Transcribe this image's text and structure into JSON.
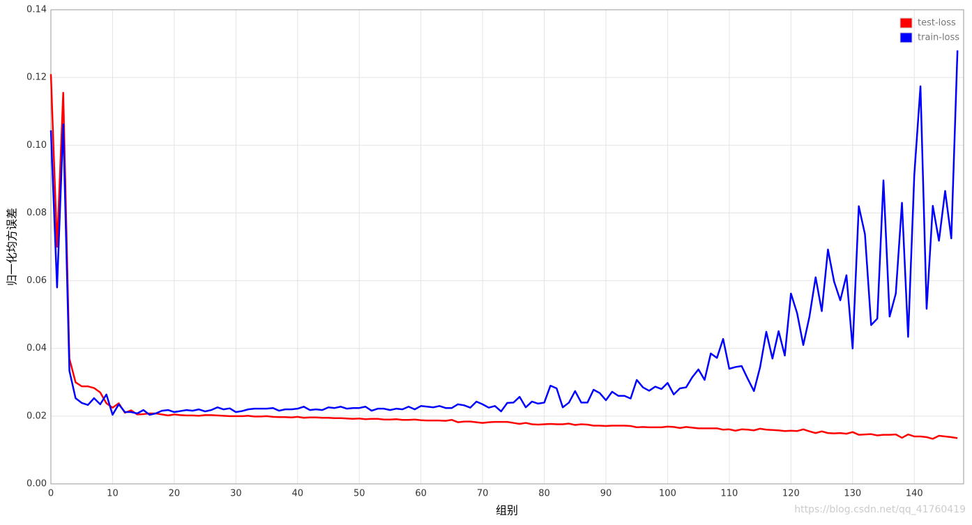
{
  "chart_data": {
    "type": "line",
    "x_label": "组别",
    "y_label": "归一化均方误差",
    "watermark": "https://blog.csdn.net/qq_41760419",
    "x": [
      0,
      1,
      2,
      3,
      4,
      5,
      6,
      7,
      8,
      9,
      10,
      11,
      12,
      13,
      14,
      15,
      16,
      17,
      18,
      19,
      20,
      21,
      22,
      23,
      24,
      25,
      26,
      27,
      28,
      29,
      30,
      31,
      32,
      33,
      34,
      35,
      36,
      37,
      38,
      39,
      40,
      41,
      42,
      43,
      44,
      45,
      46,
      47,
      48,
      49,
      50,
      51,
      52,
      53,
      54,
      55,
      56,
      57,
      58,
      59,
      60,
      61,
      62,
      63,
      64,
      65,
      66,
      67,
      68,
      69,
      70,
      71,
      72,
      73,
      74,
      75,
      76,
      77,
      78,
      79,
      80,
      81,
      82,
      83,
      84,
      85,
      86,
      87,
      88,
      89,
      90,
      91,
      92,
      93,
      94,
      95,
      96,
      97,
      98,
      99,
      100,
      101,
      102,
      103,
      104,
      105,
      106,
      107,
      108,
      109,
      110,
      111,
      112,
      113,
      114,
      115,
      116,
      117,
      118,
      119,
      120,
      121,
      122,
      123,
      124,
      125,
      126,
      127,
      128,
      129,
      130,
      131,
      132,
      133,
      134,
      135,
      136,
      137,
      138,
      139,
      140,
      141,
      142,
      143,
      144,
      145,
      146,
      147
    ],
    "series": [
      {
        "name": "test-loss",
        "color": "#ff0000",
        "values": [
          0.121,
          0.07,
          0.1155,
          0.037,
          0.03,
          0.0288,
          0.0288,
          0.0283,
          0.027,
          0.0238,
          0.0225,
          0.0238,
          0.021,
          0.0217,
          0.0205,
          0.0206,
          0.0208,
          0.0208,
          0.0205,
          0.0202,
          0.0205,
          0.0203,
          0.0202,
          0.0202,
          0.0201,
          0.0203,
          0.0203,
          0.0202,
          0.0201,
          0.02,
          0.02,
          0.02,
          0.0201,
          0.0199,
          0.0199,
          0.02,
          0.0198,
          0.0197,
          0.0197,
          0.0196,
          0.0198,
          0.0195,
          0.0196,
          0.0196,
          0.0195,
          0.0195,
          0.0194,
          0.0194,
          0.0193,
          0.0192,
          0.0193,
          0.0191,
          0.0192,
          0.0192,
          0.019,
          0.019,
          0.0191,
          0.0189,
          0.0189,
          0.019,
          0.0188,
          0.0187,
          0.0187,
          0.0187,
          0.0186,
          0.0189,
          0.0182,
          0.0184,
          0.0184,
          0.0182,
          0.018,
          0.0182,
          0.0183,
          0.0183,
          0.0183,
          0.018,
          0.0177,
          0.018,
          0.0176,
          0.0175,
          0.0176,
          0.0177,
          0.0176,
          0.0176,
          0.0178,
          0.0174,
          0.0176,
          0.0175,
          0.0172,
          0.0172,
          0.0171,
          0.0172,
          0.0172,
          0.0172,
          0.0171,
          0.0167,
          0.0168,
          0.0167,
          0.0167,
          0.0167,
          0.0169,
          0.0168,
          0.0165,
          0.0168,
          0.0166,
          0.0164,
          0.0164,
          0.0164,
          0.0164,
          0.016,
          0.0161,
          0.0157,
          0.0161,
          0.016,
          0.0158,
          0.0163,
          0.016,
          0.0159,
          0.0158,
          0.0156,
          0.0157,
          0.0156,
          0.0161,
          0.0155,
          0.015,
          0.0155,
          0.015,
          0.0149,
          0.015,
          0.0148,
          0.0153,
          0.0145,
          0.0146,
          0.0147,
          0.0143,
          0.0145,
          0.0145,
          0.0146,
          0.0136,
          0.0146,
          0.014,
          0.014,
          0.0138,
          0.0133,
          0.0142,
          0.014,
          0.0138,
          0.0135
        ]
      },
      {
        "name": "train-loss",
        "color": "#0000ff",
        "values": [
          0.1044,
          0.058,
          0.1062,
          0.0334,
          0.0253,
          0.0239,
          0.0233,
          0.0253,
          0.0235,
          0.0264,
          0.0204,
          0.0235,
          0.0212,
          0.0212,
          0.0208,
          0.0218,
          0.0204,
          0.0208,
          0.0216,
          0.0218,
          0.0212,
          0.0215,
          0.0218,
          0.0216,
          0.022,
          0.0214,
          0.0218,
          0.0226,
          0.022,
          0.0223,
          0.0212,
          0.0215,
          0.022,
          0.0222,
          0.0222,
          0.0222,
          0.0224,
          0.0216,
          0.022,
          0.022,
          0.0222,
          0.0228,
          0.0218,
          0.022,
          0.0218,
          0.0226,
          0.0224,
          0.0228,
          0.0222,
          0.0224,
          0.0224,
          0.0228,
          0.0216,
          0.0222,
          0.0222,
          0.0218,
          0.0222,
          0.022,
          0.0228,
          0.022,
          0.023,
          0.0228,
          0.0226,
          0.023,
          0.0224,
          0.0224,
          0.0235,
          0.0232,
          0.0225,
          0.0243,
          0.0235,
          0.0225,
          0.023,
          0.0214,
          0.0239,
          0.024,
          0.0257,
          0.0226,
          0.0243,
          0.0237,
          0.024,
          0.029,
          0.0282,
          0.0226,
          0.024,
          0.0274,
          0.024,
          0.024,
          0.0278,
          0.0268,
          0.0247,
          0.0272,
          0.026,
          0.026,
          0.0252,
          0.0307,
          0.0285,
          0.0275,
          0.0287,
          0.028,
          0.0298,
          0.0264,
          0.0282,
          0.0285,
          0.0315,
          0.0338,
          0.0307,
          0.0385,
          0.0372,
          0.0428,
          0.034,
          0.0345,
          0.0348,
          0.031,
          0.0274,
          0.0345,
          0.0449,
          0.037,
          0.0451,
          0.0379,
          0.0562,
          0.0504,
          0.041,
          0.0494,
          0.061,
          0.051,
          0.0692,
          0.0597,
          0.0542,
          0.0616,
          0.04,
          0.082,
          0.0737,
          0.0469,
          0.0488,
          0.0896,
          0.0494,
          0.0562,
          0.083,
          0.0434,
          0.0912,
          0.1174,
          0.0517,
          0.0821,
          0.0718,
          0.0865,
          0.0725,
          0.128
        ]
      }
    ],
    "xlim": [
      0,
      148
    ],
    "xticks": [
      0,
      10,
      20,
      30,
      40,
      50,
      60,
      70,
      80,
      90,
      100,
      110,
      120,
      130,
      140
    ],
    "ylim": [
      0,
      0.14
    ],
    "yticks": [
      {
        "value": 0,
        "label": "0.00"
      },
      0.02,
      0.04,
      0.06,
      0.08,
      {
        "value": 0.1,
        "label": "0.10"
      },
      0.12,
      0.14
    ],
    "grid": true,
    "legend": "top-right"
  }
}
